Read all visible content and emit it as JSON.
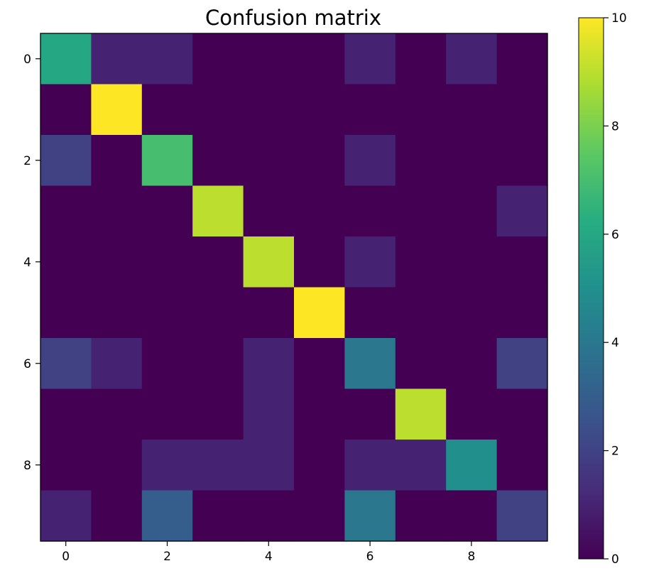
{
  "chart_data": {
    "type": "heatmap",
    "title": "Confusion matrix",
    "xlabel": "",
    "ylabel": "",
    "rows": 10,
    "cols": 10,
    "x_ticks": [
      0,
      2,
      4,
      6,
      8
    ],
    "y_ticks": [
      0,
      2,
      4,
      6,
      8
    ],
    "x_tick_labels": [
      "0",
      "2",
      "4",
      "6",
      "8"
    ],
    "y_tick_labels": [
      "0",
      "2",
      "4",
      "6",
      "8"
    ],
    "values": [
      [
        6,
        1,
        1,
        0,
        0,
        0,
        1,
        0,
        1,
        0
      ],
      [
        0,
        10,
        0,
        0,
        0,
        0,
        0,
        0,
        0,
        0
      ],
      [
        2,
        0,
        7,
        0,
        0,
        0,
        1,
        0,
        0,
        0
      ],
      [
        0,
        0,
        0,
        9,
        0,
        0,
        0,
        0,
        0,
        1
      ],
      [
        0,
        0,
        0,
        0,
        9,
        0,
        1,
        0,
        0,
        0
      ],
      [
        0,
        0,
        0,
        0,
        0,
        10,
        0,
        0,
        0,
        0
      ],
      [
        2,
        1,
        0,
        0,
        1,
        0,
        4,
        0,
        0,
        2
      ],
      [
        0,
        0,
        0,
        0,
        1,
        0,
        0,
        9,
        0,
        0
      ],
      [
        0,
        0,
        1,
        1,
        1,
        0,
        1,
        1,
        5,
        0
      ],
      [
        1,
        0,
        3,
        0,
        0,
        0,
        4,
        0,
        0,
        2
      ]
    ],
    "colormap": "viridis",
    "colorbar": {
      "range": [
        0,
        10
      ],
      "ticks": [
        0,
        2,
        4,
        6,
        8,
        10
      ],
      "tick_labels": [
        "0",
        "2",
        "4",
        "6",
        "8",
        "10"
      ]
    },
    "grid": false,
    "legend": "none"
  }
}
